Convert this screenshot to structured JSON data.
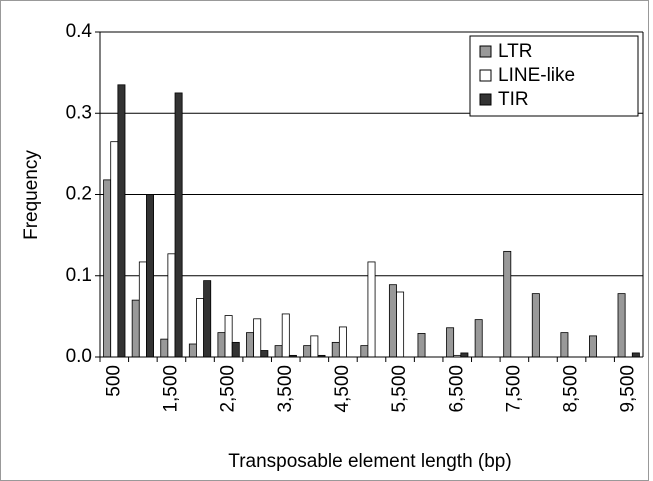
{
  "chart_data": {
    "type": "bar",
    "xlabel": "Transposable element length (bp)",
    "ylabel": "Frequency",
    "categories": [
      "500",
      null,
      "1,500",
      null,
      "2,500",
      null,
      "3,500",
      null,
      "4,500",
      null,
      "5,500",
      null,
      "6,500",
      null,
      "7,500",
      null,
      "8,500",
      null,
      "9,500"
    ],
    "series": [
      {
        "name": "LTR",
        "color": "#999999",
        "values": [
          0.218,
          0.07,
          0.022,
          0.016,
          0.03,
          0.03,
          0.014,
          0.014,
          0.018,
          0.014,
          0.089,
          0.029,
          0.036,
          0.046,
          0.13,
          0.078,
          0.03,
          0.026,
          0.078
        ]
      },
      {
        "name": "LINE-like",
        "color": "#ffffff",
        "values": [
          0.265,
          0.117,
          0.127,
          0.072,
          0.051,
          0.047,
          0.053,
          0.026,
          0.037,
          0.117,
          0.08,
          0,
          0.002,
          0,
          0,
          0,
          0,
          0,
          0
        ]
      },
      {
        "name": "TIR",
        "color": "#333333",
        "values": [
          0.335,
          0.2,
          0.325,
          0.094,
          0.018,
          0.008,
          0.002,
          0.002,
          0,
          0,
          0,
          0,
          0.005,
          0,
          0,
          0,
          0,
          0,
          0.005
        ]
      }
    ],
    "ylim": [
      0,
      0.4
    ],
    "yticks": [
      {
        "value": 0,
        "label": "0.0"
      },
      0.1,
      0.2,
      0.3,
      0.4
    ],
    "grid": true,
    "legend": "upper right"
  }
}
